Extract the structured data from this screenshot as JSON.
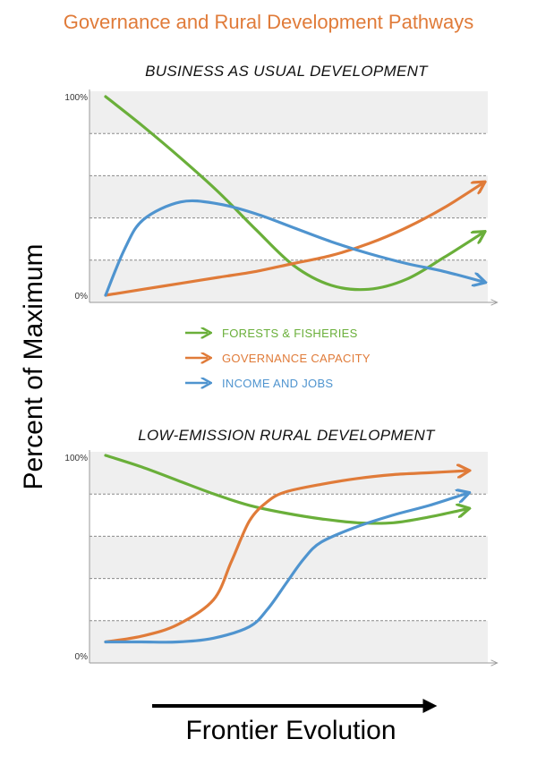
{
  "title": "Governance and Rural Development Pathways",
  "ylabel": "Percent of Maximum",
  "xlabel": "Frontier Evolution",
  "colors": {
    "forests": "#6AAF3A",
    "governance": "#E07B39",
    "income": "#4F94CF"
  },
  "legend": [
    {
      "label": "FORESTS & FISHERIES",
      "color": "#6AAF3A"
    },
    {
      "label": "GOVERNANCE CAPACITY",
      "color": "#E07B39"
    },
    {
      "label": "INCOME AND JOBS",
      "color": "#4F94CF"
    }
  ],
  "chart_data": [
    {
      "type": "line",
      "title": "BUSINESS AS USUAL DEVELOPMENT",
      "yticks": [
        "100%",
        "0%"
      ],
      "ylim": [
        0,
        100
      ],
      "xlim": [
        0,
        100
      ],
      "grid": true,
      "series": [
        {
          "name": "FORESTS & FISHERIES",
          "color": "#6AAF3A",
          "x": [
            0,
            10,
            20,
            30,
            40,
            50,
            60,
            70,
            80,
            90,
            100
          ],
          "y": [
            100,
            85,
            69,
            52,
            33,
            15,
            5,
            3,
            8,
            19,
            31
          ]
        },
        {
          "name": "GOVERNANCE CAPACITY",
          "color": "#E07B39",
          "x": [
            0,
            10,
            20,
            30,
            40,
            50,
            60,
            70,
            80,
            90,
            100
          ],
          "y": [
            0,
            3,
            6,
            9,
            12,
            16,
            20,
            26,
            34,
            44,
            56
          ]
        },
        {
          "name": "INCOME AND JOBS",
          "color": "#4F94CF",
          "x": [
            0,
            5,
            10,
            20,
            30,
            40,
            50,
            60,
            70,
            80,
            90,
            100
          ],
          "y": [
            0,
            23,
            38,
            47,
            46,
            41,
            34,
            27,
            21,
            16,
            12,
            7
          ]
        }
      ]
    },
    {
      "type": "line",
      "title": "LOW-EMISSION RURAL DEVELOPMENT",
      "yticks": [
        "100%",
        "0%"
      ],
      "ylim": [
        0,
        100
      ],
      "xlim": [
        0,
        100
      ],
      "grid": true,
      "series": [
        {
          "name": "FORESTS & FISHERIES",
          "color": "#6AAF3A",
          "x": [
            0,
            10,
            20,
            30,
            40,
            50,
            60,
            70,
            80,
            90,
            100
          ],
          "y": [
            100,
            94,
            87,
            80,
            74,
            70,
            67,
            65,
            65,
            68,
            72
          ]
        },
        {
          "name": "GOVERNANCE CAPACITY",
          "color": "#E07B39",
          "x": [
            0,
            10,
            20,
            30,
            35,
            40,
            45,
            50,
            60,
            70,
            80,
            90,
            100
          ],
          "y": [
            3,
            6,
            12,
            25,
            45,
            66,
            76,
            81,
            85,
            88,
            90,
            91,
            92
          ]
        },
        {
          "name": "INCOME AND JOBS",
          "color": "#4F94CF",
          "x": [
            0,
            10,
            20,
            30,
            40,
            45,
            50,
            55,
            60,
            70,
            80,
            90,
            100
          ],
          "y": [
            3,
            3,
            3,
            5,
            11,
            20,
            33,
            46,
            55,
            63,
            69,
            74,
            80
          ]
        }
      ]
    }
  ]
}
